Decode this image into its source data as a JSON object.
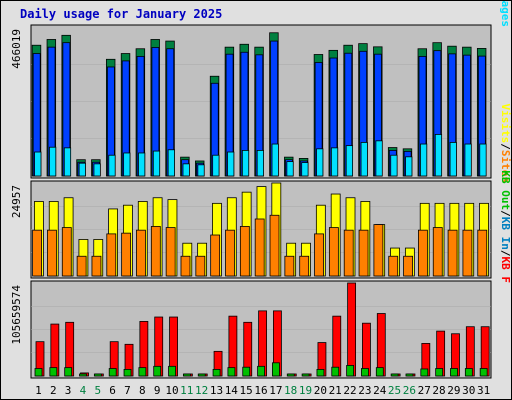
{
  "title": "Daily usage for January 2025",
  "colors": {
    "background": "#e0e0e0",
    "panel": "#c0c0c0",
    "hits": "#008040",
    "files": "#0040ff",
    "pages": "#00e0ff",
    "visits": "#ffff00",
    "sites": "#ff8000",
    "kbin": "#0080c0",
    "kbout": "#00c000",
    "kbf": "#ff0000",
    "weekday_label": "#000000",
    "weekend_label": "#008040",
    "separator": "#000000"
  },
  "chart_data": [
    {
      "type": "bar",
      "max_label": "466019",
      "legend": {
        "left": "Pages",
        "sep1": "/",
        "mid": "Files",
        "sep2": "/",
        "right": "Hits"
      },
      "categories": [
        "1",
        "2",
        "3",
        "4",
        "5",
        "6",
        "7",
        "8",
        "9",
        "10",
        "11",
        "12",
        "13",
        "14",
        "15",
        "16",
        "17",
        "18",
        "19",
        "20",
        "21",
        "22",
        "23",
        "24",
        "25",
        "26",
        "27",
        "28",
        "29",
        "30",
        "31"
      ],
      "weekend_days": [
        "4",
        "5",
        "11",
        "12",
        "18",
        "19",
        "25",
        "26"
      ],
      "ylim": [
        0,
        466019
      ],
      "series": [
        {
          "name": "Hits",
          "values": [
            409000,
            427000,
            440000,
            51000,
            51000,
            365000,
            383000,
            398000,
            427000,
            422000,
            59000,
            47000,
            312000,
            403000,
            412000,
            403000,
            448000,
            59000,
            55000,
            380000,
            393000,
            409000,
            414000,
            404000,
            89000,
            85000,
            398000,
            417000,
            406000,
            403000,
            399000
          ]
        },
        {
          "name": "Files",
          "values": [
            383000,
            403000,
            417000,
            43000,
            43000,
            341000,
            360000,
            374000,
            402000,
            398000,
            51000,
            40000,
            290000,
            381000,
            387000,
            379000,
            422000,
            51000,
            47000,
            355000,
            369000,
            384000,
            390000,
            381000,
            80000,
            77000,
            374000,
            392000,
            382000,
            378000,
            375000
          ]
        },
        {
          "name": "Pages",
          "values": [
            75000,
            90000,
            88000,
            40000,
            38000,
            65000,
            72000,
            72000,
            78000,
            82000,
            38000,
            35000,
            65000,
            75000,
            80000,
            80000,
            100000,
            45000,
            42000,
            85000,
            88000,
            95000,
            105000,
            110000,
            65000,
            60000,
            100000,
            130000,
            105000,
            100000,
            100000
          ]
        }
      ]
    },
    {
      "type": "bar",
      "max_label": "24957",
      "legend": {
        "left": "Sites",
        "sep1": "/",
        "right": "Visits"
      },
      "categories": [
        "1",
        "2",
        "3",
        "4",
        "5",
        "6",
        "7",
        "8",
        "9",
        "10",
        "11",
        "12",
        "13",
        "14",
        "15",
        "16",
        "17",
        "18",
        "19",
        "20",
        "21",
        "22",
        "23",
        "24",
        "25",
        "26",
        "27",
        "28",
        "29",
        "30",
        "31"
      ],
      "ylim": [
        0,
        24957
      ],
      "series": [
        {
          "name": "Visits",
          "values": [
            20000,
            20000,
            21000,
            9800,
            9800,
            18000,
            19000,
            20000,
            21000,
            20500,
            8800,
            8800,
            19500,
            21000,
            22500,
            24000,
            24957,
            8800,
            8800,
            19000,
            22000,
            21000,
            20000,
            13800,
            7500,
            7500,
            19500,
            19500,
            19500,
            19500,
            19500
          ]
        },
        {
          "name": "Sites",
          "values": [
            12300,
            12300,
            13000,
            5300,
            5300,
            11300,
            11500,
            12300,
            13300,
            13000,
            5300,
            5300,
            11000,
            12300,
            13300,
            15300,
            16300,
            5300,
            5300,
            11300,
            13000,
            12300,
            12300,
            13800,
            5300,
            5300,
            12300,
            13000,
            12300,
            12300,
            12300
          ]
        }
      ]
    },
    {
      "type": "bar",
      "max_label": "105659574",
      "legend": {
        "left": "KB F",
        "sep1": "/",
        "mid": "KB In",
        "sep2": "/",
        "right": "KB Out"
      },
      "categories": [
        "1",
        "2",
        "3",
        "4",
        "5",
        "6",
        "7",
        "8",
        "9",
        "10",
        "11",
        "12",
        "13",
        "14",
        "15",
        "16",
        "17",
        "18",
        "19",
        "20",
        "21",
        "22",
        "23",
        "24",
        "25",
        "26",
        "27",
        "28",
        "29",
        "30",
        "31"
      ],
      "ylim": [
        0,
        105659574
      ],
      "series": [
        {
          "name": "KB F",
          "values": [
            39000000,
            59000000,
            61000000,
            3500000,
            2300000,
            39000000,
            36000000,
            62000000,
            67000000,
            67000000,
            2300000,
            2300000,
            28000000,
            68000000,
            61000000,
            74000000,
            74000000,
            2300000,
            2300000,
            38000000,
            68000000,
            105659574,
            60000000,
            71000000,
            2300000,
            2300000,
            37000000,
            51000000,
            48000000,
            56000000,
            56000000
          ]
        },
        {
          "name": "KB In",
          "values": [
            0,
            0,
            0,
            0,
            0,
            0,
            0,
            0,
            0,
            0,
            0,
            0,
            0,
            0,
            0,
            0,
            0,
            0,
            0,
            0,
            0,
            0,
            0,
            0,
            0,
            0,
            0,
            0,
            0,
            0,
            0
          ]
        },
        {
          "name": "KB Out",
          "values": [
            8500000,
            9500000,
            9500000,
            1800000,
            1800000,
            8500000,
            7500000,
            9500000,
            11000000,
            11000000,
            1800000,
            1800000,
            7500000,
            9500000,
            10000000,
            11000000,
            15000000,
            1800000,
            1800000,
            7500000,
            10000000,
            12000000,
            8500000,
            9500000,
            1800000,
            1800000,
            8000000,
            8500000,
            8500000,
            8500000,
            8500000
          ]
        }
      ]
    }
  ]
}
